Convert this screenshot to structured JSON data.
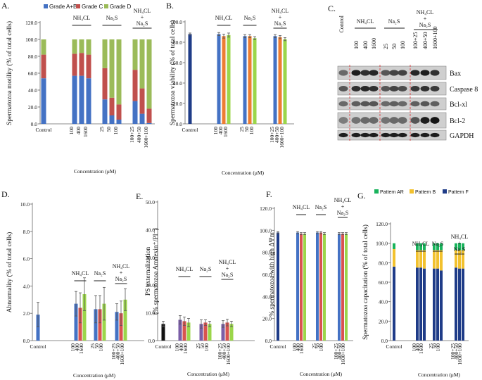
{
  "colors": {
    "ab": "#4472c4",
    "c": "#c0504d",
    "d": "#9bbb59",
    "navy": "#1f3c88",
    "blue": "#4472c4",
    "orange": "#ed7d31",
    "green": "#9bd64a",
    "purple": "#7b5ea7",
    "red": "#d9534f",
    "black": "#111111",
    "patAR": "#19b35c",
    "patB": "#f2c12e",
    "patF": "#1f3c88"
  },
  "common": {
    "control": "Control",
    "xlabel": "Concentration (μM)"
  },
  "groups": {
    "nh4cl": {
      "label": "NH₄CL",
      "ticks": [
        "100",
        "400",
        "1600"
      ]
    },
    "na2s": {
      "label": "Na₂S",
      "ticks": [
        "25",
        "50",
        "100"
      ]
    },
    "combo": {
      "label_line1": "NH₄CL",
      "label_line2": "+",
      "label_line3": "Na₂S",
      "ticks": [
        "100+25",
        "400+50",
        "1600+100"
      ]
    }
  },
  "panels": {
    "A": {
      "letter": "A.",
      "ylabel": "Spermatozoa motility (% of total cells)",
      "yticks": [
        "0.0",
        "20.0",
        "40.0",
        "60.0",
        "80.0",
        "100.0",
        "120.0"
      ],
      "legend": [
        "Grade A+B",
        "Grade C",
        "Grade D"
      ]
    },
    "B": {
      "letter": "B.",
      "ylabel": "Spermatozoa viability (% of total cells)",
      "yticks": [
        "0.0",
        "20.0",
        "40.0",
        "60.0",
        "80.0",
        "100.0"
      ]
    },
    "C": {
      "letter": "C.",
      "lanes": [
        "Control",
        "100",
        "400",
        "1600",
        "25",
        "50",
        "100",
        "100+25",
        "400+50",
        "1600+100"
      ],
      "proteins": [
        "Bax",
        "Caspase 8",
        "Bcl-xl",
        "Bcl-2",
        "GAPDH"
      ]
    },
    "D": {
      "letter": "D.",
      "ylabel": "Abnormality (% of total cells)",
      "yticks": [
        "0.0",
        "2.0",
        "4.0",
        "6.0",
        "8.0",
        "10.0"
      ]
    },
    "E": {
      "letter": "E.",
      "ylabel1": "PS externalization",
      "ylabel2": "(% spermatozoa Amnexin⁺/PI⁻)",
      "yticks": [
        "0.0",
        "10.0",
        "20.0",
        "30.0",
        "40.0",
        "50.0"
      ]
    },
    "F": {
      "letter": "F.",
      "ylabel": "% spermatozoa with high ΔΨm",
      "yticks": [
        "0.0",
        "20.0",
        "40.0",
        "60.0",
        "80.0",
        "100.0",
        "120.0"
      ]
    },
    "G": {
      "letter": "G.",
      "ylabel": "Spermatozoa capacitation (% of total cells)",
      "yticks": [
        "0.0",
        "20.0",
        "40.0",
        "60.0",
        "80.0",
        "100.0",
        "120.0"
      ],
      "legend": [
        "Pattern AR",
        "Pattern B",
        "Pattern F"
      ]
    }
  },
  "chart_data": [
    {
      "panel": "A",
      "type": "bar",
      "stacked": true,
      "ylim": [
        0,
        120
      ],
      "categories": [
        "Control",
        "100",
        "400",
        "1600",
        "25",
        "50",
        "100",
        "100+25",
        "400+50",
        "1600+100"
      ],
      "series": [
        {
          "name": "Grade A+B",
          "values": [
            54,
            57,
            57,
            54,
            29,
            10,
            5,
            27,
            12,
            1
          ]
        },
        {
          "name": "Grade C",
          "values": [
            28,
            26,
            27,
            28,
            37,
            21,
            18,
            37,
            30,
            17
          ]
        },
        {
          "name": "Grade D",
          "values": [
            18,
            17,
            16,
            18,
            34,
            69,
            77,
            36,
            58,
            82
          ]
        }
      ]
    },
    {
      "panel": "B",
      "type": "bar",
      "ylim": [
        0,
        100
      ],
      "categories": [
        "Control",
        "100",
        "400",
        "1600",
        "25",
        "50",
        "100",
        "100+25",
        "400+50",
        "1600+100"
      ],
      "values": [
        88,
        88,
        86,
        87,
        86,
        86,
        84,
        86,
        85,
        83
      ],
      "errors": [
        1,
        1.5,
        2,
        2,
        1.5,
        1.5,
        1.5,
        1.5,
        1.5,
        1.5
      ]
    },
    {
      "panel": "D",
      "type": "bar",
      "ylim": [
        0,
        10
      ],
      "categories": [
        "Control",
        "100",
        "400",
        "1600",
        "25",
        "50",
        "100",
        "100+25",
        "400+50",
        "1600+100"
      ],
      "values": [
        1.9,
        2.7,
        2.4,
        3.4,
        2.3,
        2.3,
        2.7,
        2.1,
        2.0,
        3.0
      ],
      "errors": [
        0.9,
        0.9,
        1.1,
        1.2,
        1.0,
        1.0,
        1.2,
        0.6,
        0.9,
        0.8
      ]
    },
    {
      "panel": "E",
      "type": "bar",
      "ylim": [
        0,
        50
      ],
      "categories": [
        "Control",
        "100",
        "400",
        "1600",
        "25",
        "50",
        "100",
        "100+25",
        "400+50",
        "1600+100"
      ],
      "values": [
        6,
        7.5,
        7,
        6.5,
        6,
        6.5,
        6,
        6,
        6.5,
        6
      ],
      "errors": [
        1,
        1.5,
        1.5,
        1.5,
        1.5,
        1,
        1,
        1.2,
        1.2,
        1
      ]
    },
    {
      "panel": "F",
      "type": "bar",
      "ylim": [
        0,
        120
      ],
      "categories": [
        "Control",
        "100",
        "400",
        "1600",
        "25",
        "50",
        "100",
        "100+25",
        "400+50",
        "1600+100"
      ],
      "values": [
        98,
        98,
        97,
        97,
        98,
        98,
        97,
        97,
        97,
        97
      ],
      "errors": [
        1,
        1,
        1,
        1,
        1,
        1,
        1,
        1,
        1,
        1
      ]
    },
    {
      "panel": "G",
      "type": "bar",
      "stacked": true,
      "ylim": [
        0,
        120
      ],
      "categories": [
        "Control",
        "100",
        "400",
        "1600",
        "25",
        "50",
        "100",
        "100+25",
        "400+50",
        "1600+100"
      ],
      "series": [
        {
          "name": "Pattern F",
          "values": [
            76,
            75,
            75,
            74,
            74,
            74,
            72,
            75,
            74,
            74
          ]
        },
        {
          "name": "Pattern B",
          "values": [
            18,
            18,
            18,
            19,
            19,
            19,
            21,
            18,
            19,
            19
          ]
        },
        {
          "name": "Pattern AR",
          "values": [
            6,
            7,
            7,
            7,
            7,
            7,
            7,
            7,
            7,
            7
          ]
        }
      ]
    }
  ]
}
